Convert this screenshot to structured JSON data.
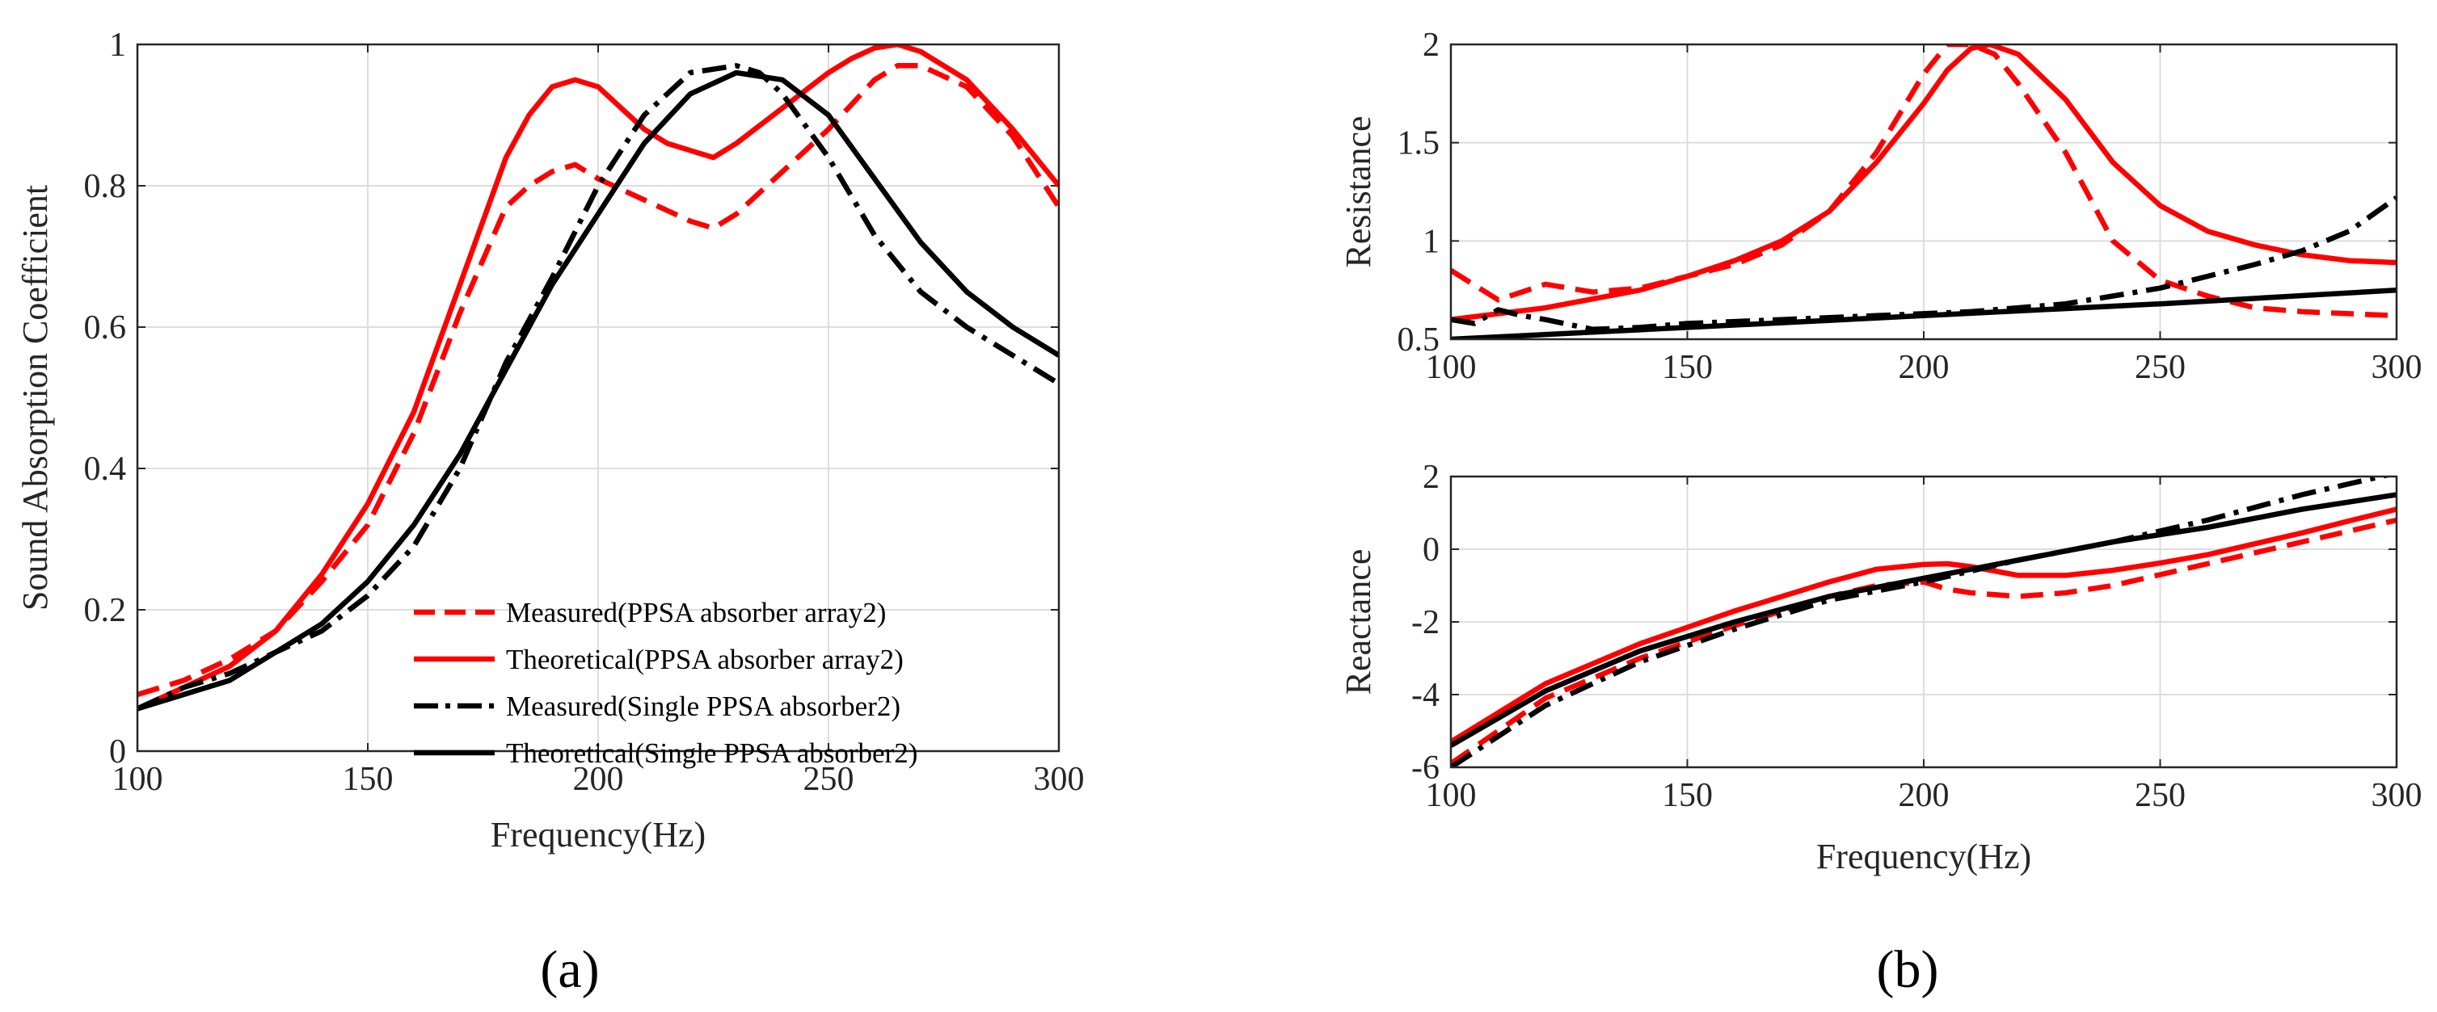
{
  "chart_data": [
    {
      "id": "a",
      "type": "line",
      "panel_label": "(a)",
      "xlabel": "Frequency(Hz)",
      "ylabel": "Sound Absorption Coefficient",
      "xlim": [
        100,
        300
      ],
      "ylim": [
        0,
        1
      ],
      "xticks": [
        100,
        150,
        200,
        250,
        300
      ],
      "yticks": [
        0,
        0.2,
        0.4,
        0.6,
        0.8,
        1
      ],
      "ytick_labels": [
        "0",
        "0.2",
        "0.4",
        "0.6",
        "0.8",
        "1"
      ],
      "grid": true,
      "legend_position": "bottom-right",
      "series": [
        {
          "name": "Measured(PPSA absorber array2)",
          "color": "#ff0000",
          "dash": "dashed",
          "x": [
            100,
            110,
            120,
            130,
            140,
            150,
            160,
            170,
            180,
            185,
            190,
            195,
            200,
            210,
            220,
            225,
            230,
            240,
            250,
            260,
            265,
            270,
            280,
            290,
            300
          ],
          "y": [
            0.08,
            0.1,
            0.13,
            0.17,
            0.24,
            0.32,
            0.45,
            0.62,
            0.77,
            0.8,
            0.82,
            0.83,
            0.81,
            0.78,
            0.75,
            0.74,
            0.76,
            0.82,
            0.88,
            0.95,
            0.97,
            0.97,
            0.94,
            0.87,
            0.77
          ]
        },
        {
          "name": "Theoretical(PPSA absorber array2)",
          "color": "#ff0000",
          "dash": "solid",
          "x": [
            100,
            110,
            120,
            130,
            140,
            150,
            160,
            170,
            180,
            185,
            190,
            195,
            200,
            205,
            210,
            215,
            220,
            225,
            230,
            240,
            250,
            255,
            260,
            265,
            270,
            280,
            290,
            300
          ],
          "y": [
            0.06,
            0.09,
            0.12,
            0.17,
            0.25,
            0.35,
            0.48,
            0.66,
            0.84,
            0.9,
            0.94,
            0.95,
            0.94,
            0.91,
            0.88,
            0.86,
            0.85,
            0.84,
            0.86,
            0.91,
            0.96,
            0.98,
            0.995,
            1.0,
            0.99,
            0.95,
            0.88,
            0.8
          ]
        },
        {
          "name": "Measured(Single PPSA absorber2)",
          "color": "#000000",
          "dash": "dashdot",
          "x": [
            100,
            110,
            120,
            130,
            140,
            150,
            160,
            170,
            180,
            190,
            200,
            210,
            220,
            230,
            235,
            240,
            250,
            260,
            270,
            280,
            290,
            300
          ],
          "y": [
            0.06,
            0.09,
            0.11,
            0.14,
            0.17,
            0.22,
            0.29,
            0.4,
            0.55,
            0.67,
            0.8,
            0.9,
            0.96,
            0.97,
            0.96,
            0.93,
            0.84,
            0.73,
            0.65,
            0.6,
            0.56,
            0.52
          ]
        },
        {
          "name": "Theoretical(Single PPSA absorber2)",
          "color": "#000000",
          "dash": "solid",
          "x": [
            100,
            110,
            120,
            130,
            140,
            150,
            160,
            170,
            180,
            190,
            200,
            210,
            220,
            230,
            240,
            250,
            260,
            270,
            280,
            290,
            300
          ],
          "y": [
            0.06,
            0.08,
            0.1,
            0.14,
            0.18,
            0.24,
            0.32,
            0.42,
            0.54,
            0.66,
            0.76,
            0.86,
            0.93,
            0.96,
            0.95,
            0.9,
            0.81,
            0.72,
            0.65,
            0.6,
            0.56
          ]
        }
      ]
    },
    {
      "id": "b_top",
      "type": "line",
      "panel_label": "(b)",
      "xlabel": "",
      "ylabel": "Resistance",
      "xlim": [
        100,
        300
      ],
      "ylim": [
        0.5,
        2
      ],
      "xticks": [
        100,
        150,
        200,
        250,
        300
      ],
      "yticks": [
        0.5,
        1,
        1.5,
        2
      ],
      "ytick_labels": [
        "0.5",
        "1",
        "1.5",
        "2"
      ],
      "grid": true,
      "series": [
        {
          "name": "Measured(PPSA absorber array2)",
          "color": "#ff0000",
          "dash": "dashed",
          "x": [
            100,
            110,
            120,
            130,
            140,
            150,
            160,
            170,
            180,
            190,
            200,
            205,
            210,
            215,
            220,
            230,
            240,
            250,
            260,
            270,
            280,
            290,
            300
          ],
          "y": [
            0.85,
            0.7,
            0.78,
            0.74,
            0.76,
            0.82,
            0.88,
            0.98,
            1.15,
            1.45,
            1.85,
            2.0,
            2.0,
            1.95,
            1.8,
            1.45,
            1.0,
            0.8,
            0.72,
            0.66,
            0.64,
            0.63,
            0.62
          ]
        },
        {
          "name": "Theoretical(PPSA absorber array2)",
          "color": "#ff0000",
          "dash": "solid",
          "x": [
            100,
            120,
            140,
            150,
            160,
            170,
            180,
            190,
            200,
            205,
            210,
            214,
            220,
            230,
            240,
            250,
            260,
            270,
            280,
            290,
            300
          ],
          "y": [
            0.6,
            0.66,
            0.75,
            0.82,
            0.9,
            1.0,
            1.15,
            1.4,
            1.7,
            1.87,
            1.98,
            2.0,
            1.95,
            1.72,
            1.4,
            1.18,
            1.05,
            0.98,
            0.93,
            0.9,
            0.89
          ]
        },
        {
          "name": "Measured(Single PPSA absorber2)",
          "color": "#000000",
          "dash": "dashdot",
          "x": [
            100,
            105,
            110,
            115,
            120,
            130,
            140,
            150,
            160,
            170,
            180,
            190,
            200,
            210,
            220,
            230,
            240,
            250,
            260,
            270,
            280,
            290,
            300
          ],
          "y": [
            0.6,
            0.58,
            0.65,
            0.62,
            0.6,
            0.55,
            0.56,
            0.58,
            0.59,
            0.6,
            0.61,
            0.62,
            0.63,
            0.64,
            0.66,
            0.68,
            0.72,
            0.76,
            0.82,
            0.88,
            0.95,
            1.05,
            1.22
          ]
        },
        {
          "name": "Theoretical(Single PPSA absorber2)",
          "color": "#000000",
          "dash": "solid",
          "x": [
            100,
            150,
            200,
            250,
            300
          ],
          "y": [
            0.5,
            0.56,
            0.62,
            0.68,
            0.75
          ]
        }
      ]
    },
    {
      "id": "b_bottom",
      "type": "line",
      "xlabel": "Frequency(Hz)",
      "ylabel": "Reactance",
      "xlim": [
        100,
        300
      ],
      "ylim": [
        -6,
        2
      ],
      "xticks": [
        100,
        150,
        200,
        250,
        300
      ],
      "yticks": [
        -6,
        -4,
        -2,
        0,
        2
      ],
      "ytick_labels": [
        "-6",
        "-4",
        "-2",
        "0",
        "2"
      ],
      "grid": true,
      "series": [
        {
          "name": "Measured(PPSA absorber array2)",
          "color": "#ff0000",
          "dash": "dashed",
          "x": [
            100,
            120,
            140,
            160,
            180,
            190,
            200,
            205,
            210,
            220,
            230,
            240,
            250,
            260,
            270,
            280,
            290,
            300
          ],
          "y": [
            -5.9,
            -4.1,
            -3.0,
            -2.1,
            -1.3,
            -1.0,
            -0.9,
            -1.1,
            -1.2,
            -1.3,
            -1.2,
            -1.0,
            -0.7,
            -0.4,
            -0.1,
            0.2,
            0.5,
            0.8
          ]
        },
        {
          "name": "Theoretical(PPSA absorber array2)",
          "color": "#ff0000",
          "dash": "solid",
          "x": [
            100,
            120,
            140,
            160,
            180,
            190,
            200,
            205,
            210,
            215,
            220,
            230,
            240,
            250,
            260,
            270,
            280,
            290,
            300
          ],
          "y": [
            -5.3,
            -3.7,
            -2.6,
            -1.7,
            -0.9,
            -0.55,
            -0.42,
            -0.4,
            -0.48,
            -0.6,
            -0.72,
            -0.72,
            -0.58,
            -0.38,
            -0.15,
            0.15,
            0.45,
            0.78,
            1.1
          ]
        },
        {
          "name": "Measured(Single PPSA absorber2)",
          "color": "#000000",
          "dash": "dashdot",
          "x": [
            100,
            120,
            140,
            160,
            180,
            200,
            220,
            240,
            260,
            280,
            300
          ],
          "y": [
            -6.0,
            -4.3,
            -3.1,
            -2.2,
            -1.4,
            -0.9,
            -0.3,
            0.2,
            0.8,
            1.5,
            2.1
          ]
        },
        {
          "name": "Theoretical(Single PPSA absorber2)",
          "color": "#000000",
          "dash": "solid",
          "x": [
            100,
            120,
            140,
            160,
            180,
            200,
            220,
            240,
            260,
            280,
            300
          ],
          "y": [
            -5.4,
            -3.9,
            -2.8,
            -2.0,
            -1.3,
            -0.8,
            -0.3,
            0.2,
            0.6,
            1.1,
            1.5
          ]
        }
      ]
    }
  ]
}
